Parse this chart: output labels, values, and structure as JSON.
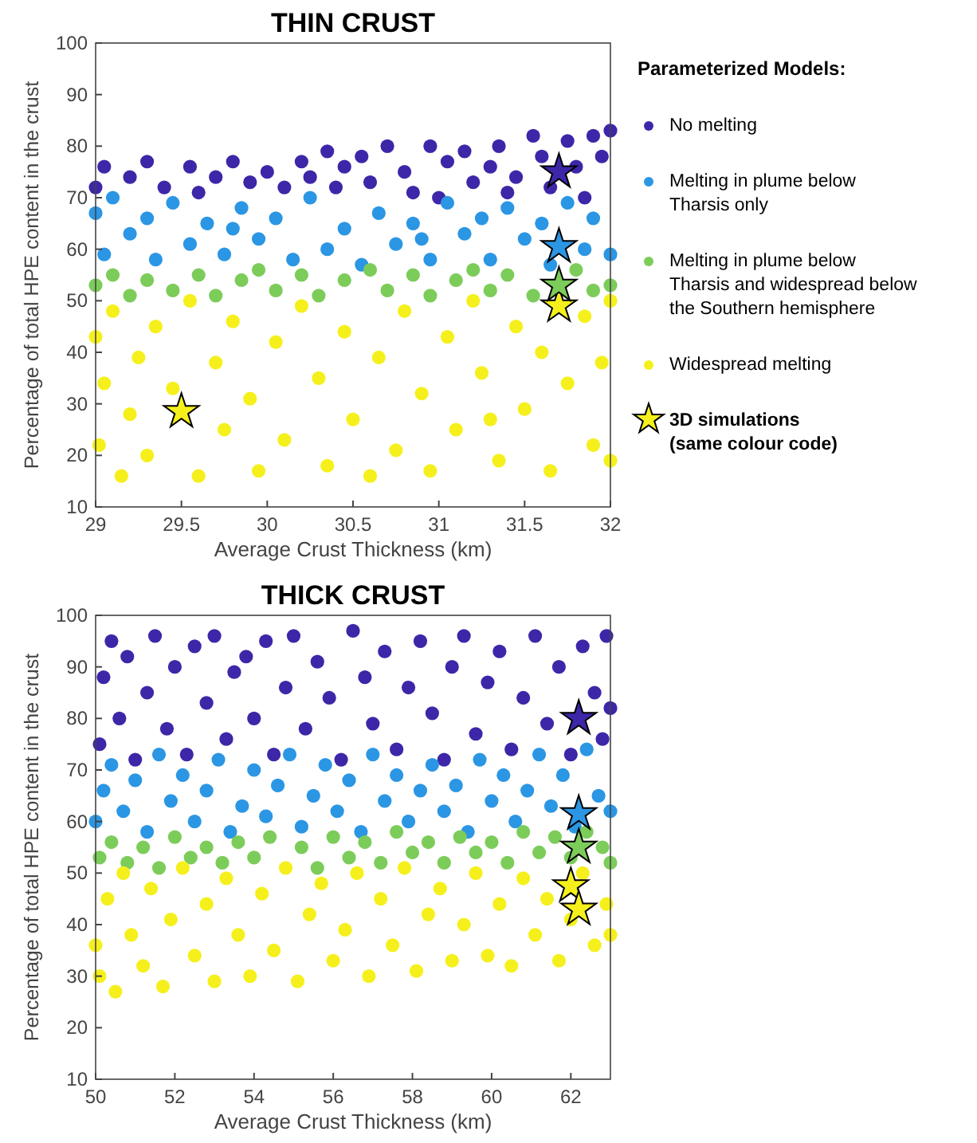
{
  "chart_data": [
    {
      "type": "scatter",
      "title": "THIN CRUST",
      "xlabel": "Average Crust Thickness (km)",
      "ylabel": "Percentage of total HPE content in the crust",
      "legend_title": "Parameterized Models:",
      "legend": "right",
      "grid": false,
      "xlim": [
        29,
        32
      ],
      "ylim": [
        10,
        100
      ],
      "xticks": [
        29,
        29.5,
        30,
        30.5,
        31,
        31.5,
        32
      ],
      "yticks": [
        10,
        20,
        30,
        40,
        50,
        60,
        70,
        80,
        90,
        100
      ],
      "series": [
        {
          "name": "No melting",
          "color": "#3e26a8",
          "marker": "circle",
          "x": [
            29.0,
            29.05,
            29.2,
            29.3,
            29.4,
            29.55,
            29.7,
            29.8,
            29.9,
            30.0,
            30.1,
            30.2,
            30.25,
            30.35,
            30.45,
            30.55,
            30.6,
            30.7,
            30.8,
            30.85,
            30.95,
            31.0,
            31.05,
            31.15,
            31.2,
            31.3,
            31.35,
            31.45,
            31.55,
            31.6,
            31.65,
            31.75,
            31.8,
            31.85,
            31.9,
            31.95,
            32.0,
            31.4,
            30.4,
            29.6
          ],
          "values": [
            72,
            76,
            74,
            77,
            72,
            76,
            74,
            77,
            73,
            75,
            72,
            77,
            74,
            79,
            76,
            78,
            73,
            80,
            75,
            71,
            80,
            70,
            77,
            79,
            73,
            76,
            80,
            74,
            82,
            78,
            72,
            81,
            76,
            70,
            82,
            78,
            83,
            71,
            72,
            71
          ]
        },
        {
          "name": "Melting in plume below Tharsis only",
          "color": "#2b96e4",
          "marker": "circle",
          "x": [
            29.0,
            29.05,
            29.1,
            29.2,
            29.3,
            29.35,
            29.45,
            29.55,
            29.65,
            29.75,
            29.85,
            29.95,
            30.05,
            30.15,
            30.25,
            30.35,
            30.45,
            30.55,
            30.65,
            30.75,
            30.85,
            30.95,
            31.05,
            31.15,
            31.25,
            31.3,
            31.4,
            31.5,
            31.6,
            31.65,
            31.75,
            31.85,
            31.9,
            32.0,
            29.8,
            30.9
          ],
          "values": [
            67,
            59,
            70,
            63,
            66,
            58,
            69,
            61,
            65,
            59,
            68,
            62,
            66,
            58,
            70,
            60,
            64,
            57,
            67,
            61,
            65,
            58,
            69,
            63,
            66,
            58,
            68,
            62,
            65,
            57,
            69,
            60,
            66,
            59,
            64,
            62
          ]
        },
        {
          "name": "Melting in plume below Tharsis and widespread below the Southern hemisphere",
          "color": "#7ccc5a",
          "marker": "circle",
          "x": [
            29.0,
            29.1,
            29.2,
            29.3,
            29.45,
            29.6,
            29.7,
            29.85,
            29.95,
            30.05,
            30.2,
            30.3,
            30.45,
            30.6,
            30.7,
            30.85,
            30.95,
            31.1,
            31.2,
            31.3,
            31.4,
            31.55,
            31.8,
            31.9,
            32.0
          ],
          "values": [
            53,
            55,
            51,
            54,
            52,
            55,
            51,
            54,
            56,
            52,
            55,
            51,
            54,
            56,
            52,
            55,
            51,
            54,
            56,
            52,
            55,
            51,
            56,
            52,
            53
          ]
        },
        {
          "name": "Widespread melting",
          "color": "#f5f01c",
          "marker": "circle",
          "x": [
            29.0,
            29.02,
            29.05,
            29.1,
            29.15,
            29.2,
            29.25,
            29.3,
            29.35,
            29.45,
            29.55,
            29.6,
            29.7,
            29.75,
            29.8,
            29.9,
            29.95,
            30.05,
            30.1,
            30.2,
            30.3,
            30.35,
            30.45,
            30.5,
            30.6,
            30.65,
            30.75,
            30.8,
            30.9,
            30.95,
            31.05,
            31.1,
            31.2,
            31.25,
            31.35,
            31.45,
            31.5,
            31.6,
            31.65,
            31.75,
            31.85,
            31.9,
            31.95,
            32.0,
            32.0,
            31.3
          ],
          "values": [
            43,
            22,
            34,
            48,
            16,
            28,
            39,
            20,
            45,
            33,
            50,
            16,
            38,
            25,
            46,
            31,
            17,
            42,
            23,
            49,
            35,
            18,
            44,
            27,
            16,
            39,
            21,
            48,
            32,
            17,
            43,
            25,
            50,
            36,
            19,
            45,
            29,
            40,
            17,
            34,
            47,
            22,
            38,
            19,
            50,
            27
          ]
        },
        {
          "name": "3D simulations (same colour code)",
          "marker": "star",
          "colors": [
            "#f5f01c",
            "#f5f01c",
            "#7ccc5a",
            "#2b96e4",
            "#3e26a8"
          ],
          "x": [
            29.5,
            31.7,
            31.7,
            31.7,
            31.7
          ],
          "values": [
            28.5,
            49,
            53,
            60.5,
            75
          ]
        }
      ]
    },
    {
      "type": "scatter",
      "title": "THICK CRUST",
      "xlabel": "Average Crust Thickness (km)",
      "ylabel": "Percentage of total HPE content in the crust",
      "grid": false,
      "xlim": [
        50,
        63
      ],
      "ylim": [
        10,
        100
      ],
      "xticks": [
        50,
        52,
        54,
        56,
        58,
        60,
        62
      ],
      "yticks": [
        10,
        20,
        30,
        40,
        50,
        60,
        70,
        80,
        90,
        100
      ],
      "series": [
        {
          "color": "#3e26a8",
          "marker": "circle",
          "x": [
            50.1,
            50.2,
            50.4,
            50.6,
            50.8,
            51.0,
            51.3,
            51.5,
            51.8,
            52.0,
            52.3,
            52.5,
            52.8,
            53.0,
            53.3,
            53.5,
            53.8,
            54.0,
            54.3,
            54.5,
            54.8,
            55.0,
            55.3,
            55.6,
            55.9,
            56.2,
            56.5,
            56.8,
            57.0,
            57.3,
            57.6,
            57.9,
            58.2,
            58.5,
            58.8,
            59.0,
            59.3,
            59.6,
            59.9,
            60.2,
            60.5,
            60.8,
            61.1,
            61.4,
            61.7,
            62.0,
            62.3,
            62.6,
            62.8,
            62.9,
            63.0
          ],
          "values": [
            75,
            88,
            95,
            80,
            92,
            72,
            85,
            96,
            78,
            90,
            73,
            94,
            83,
            96,
            76,
            89,
            92,
            80,
            95,
            73,
            86,
            96,
            78,
            91,
            84,
            72,
            97,
            88,
            79,
            93,
            74,
            86,
            95,
            81,
            72,
            90,
            96,
            77,
            87,
            93,
            74,
            84,
            96,
            79,
            90,
            73,
            94,
            85,
            76,
            96,
            82
          ]
        },
        {
          "color": "#2b96e4",
          "marker": "circle",
          "x": [
            50.0,
            50.2,
            50.4,
            50.7,
            51.0,
            51.3,
            51.6,
            51.9,
            52.2,
            52.5,
            52.8,
            53.1,
            53.4,
            53.7,
            54.0,
            54.3,
            54.6,
            54.9,
            55.2,
            55.5,
            55.8,
            56.1,
            56.4,
            56.7,
            57.0,
            57.3,
            57.6,
            57.9,
            58.2,
            58.5,
            58.8,
            59.1,
            59.4,
            59.7,
            60.0,
            60.3,
            60.6,
            60.9,
            61.2,
            61.5,
            61.8,
            62.1,
            62.4,
            62.7,
            63.0
          ],
          "values": [
            60,
            66,
            71,
            62,
            68,
            58,
            73,
            64,
            69,
            60,
            66,
            72,
            58,
            63,
            70,
            61,
            67,
            73,
            59,
            65,
            71,
            62,
            68,
            58,
            73,
            64,
            69,
            60,
            66,
            71,
            62,
            67,
            58,
            72,
            64,
            69,
            60,
            66,
            73,
            63,
            69,
            59,
            74,
            65,
            62
          ]
        },
        {
          "color": "#7ccc5a",
          "marker": "circle",
          "x": [
            50.1,
            50.4,
            50.8,
            51.2,
            51.6,
            52.0,
            52.4,
            52.8,
            53.2,
            53.6,
            54.0,
            54.4,
            55.2,
            55.6,
            56.0,
            56.4,
            56.8,
            57.2,
            57.6,
            58.0,
            58.4,
            58.8,
            59.2,
            59.6,
            60.0,
            60.4,
            60.8,
            61.2,
            61.6,
            62.0,
            62.4,
            62.8,
            63.0
          ],
          "values": [
            53,
            56,
            52,
            55,
            51,
            57,
            53,
            55,
            52,
            56,
            53,
            57,
            55,
            51,
            57,
            53,
            56,
            52,
            58,
            54,
            56,
            52,
            57,
            54,
            56,
            52,
            58,
            54,
            57,
            53,
            58,
            55,
            52
          ]
        },
        {
          "color": "#f5f01c",
          "marker": "circle",
          "x": [
            50.0,
            50.1,
            50.3,
            50.5,
            50.7,
            50.9,
            51.2,
            51.4,
            51.7,
            51.9,
            52.2,
            52.5,
            52.8,
            53.0,
            53.3,
            53.6,
            53.9,
            54.2,
            54.5,
            54.8,
            55.1,
            55.4,
            55.7,
            56.0,
            56.3,
            56.6,
            56.9,
            57.2,
            57.5,
            57.8,
            58.1,
            58.4,
            58.7,
            59.0,
            59.3,
            59.6,
            59.9,
            60.2,
            60.5,
            60.8,
            61.1,
            61.4,
            61.7,
            62.0,
            62.3,
            62.6,
            62.9,
            63.0
          ],
          "values": [
            36,
            30,
            45,
            27,
            50,
            38,
            32,
            47,
            28,
            41,
            51,
            34,
            44,
            29,
            49,
            38,
            30,
            46,
            35,
            51,
            29,
            42,
            48,
            33,
            39,
            50,
            30,
            45,
            36,
            51,
            31,
            42,
            47,
            33,
            40,
            50,
            34,
            44,
            32,
            49,
            38,
            45,
            33,
            41,
            50,
            36,
            44,
            38
          ]
        },
        {
          "marker": "star",
          "colors": [
            "#3e26a8",
            "#2b96e4",
            "#7ccc5a",
            "#f5f01c",
            "#f5f01c"
          ],
          "x": [
            62.2,
            62.2,
            62.2,
            62.0,
            62.2
          ],
          "values": [
            80,
            61.5,
            55,
            47.5,
            43
          ]
        }
      ]
    }
  ]
}
